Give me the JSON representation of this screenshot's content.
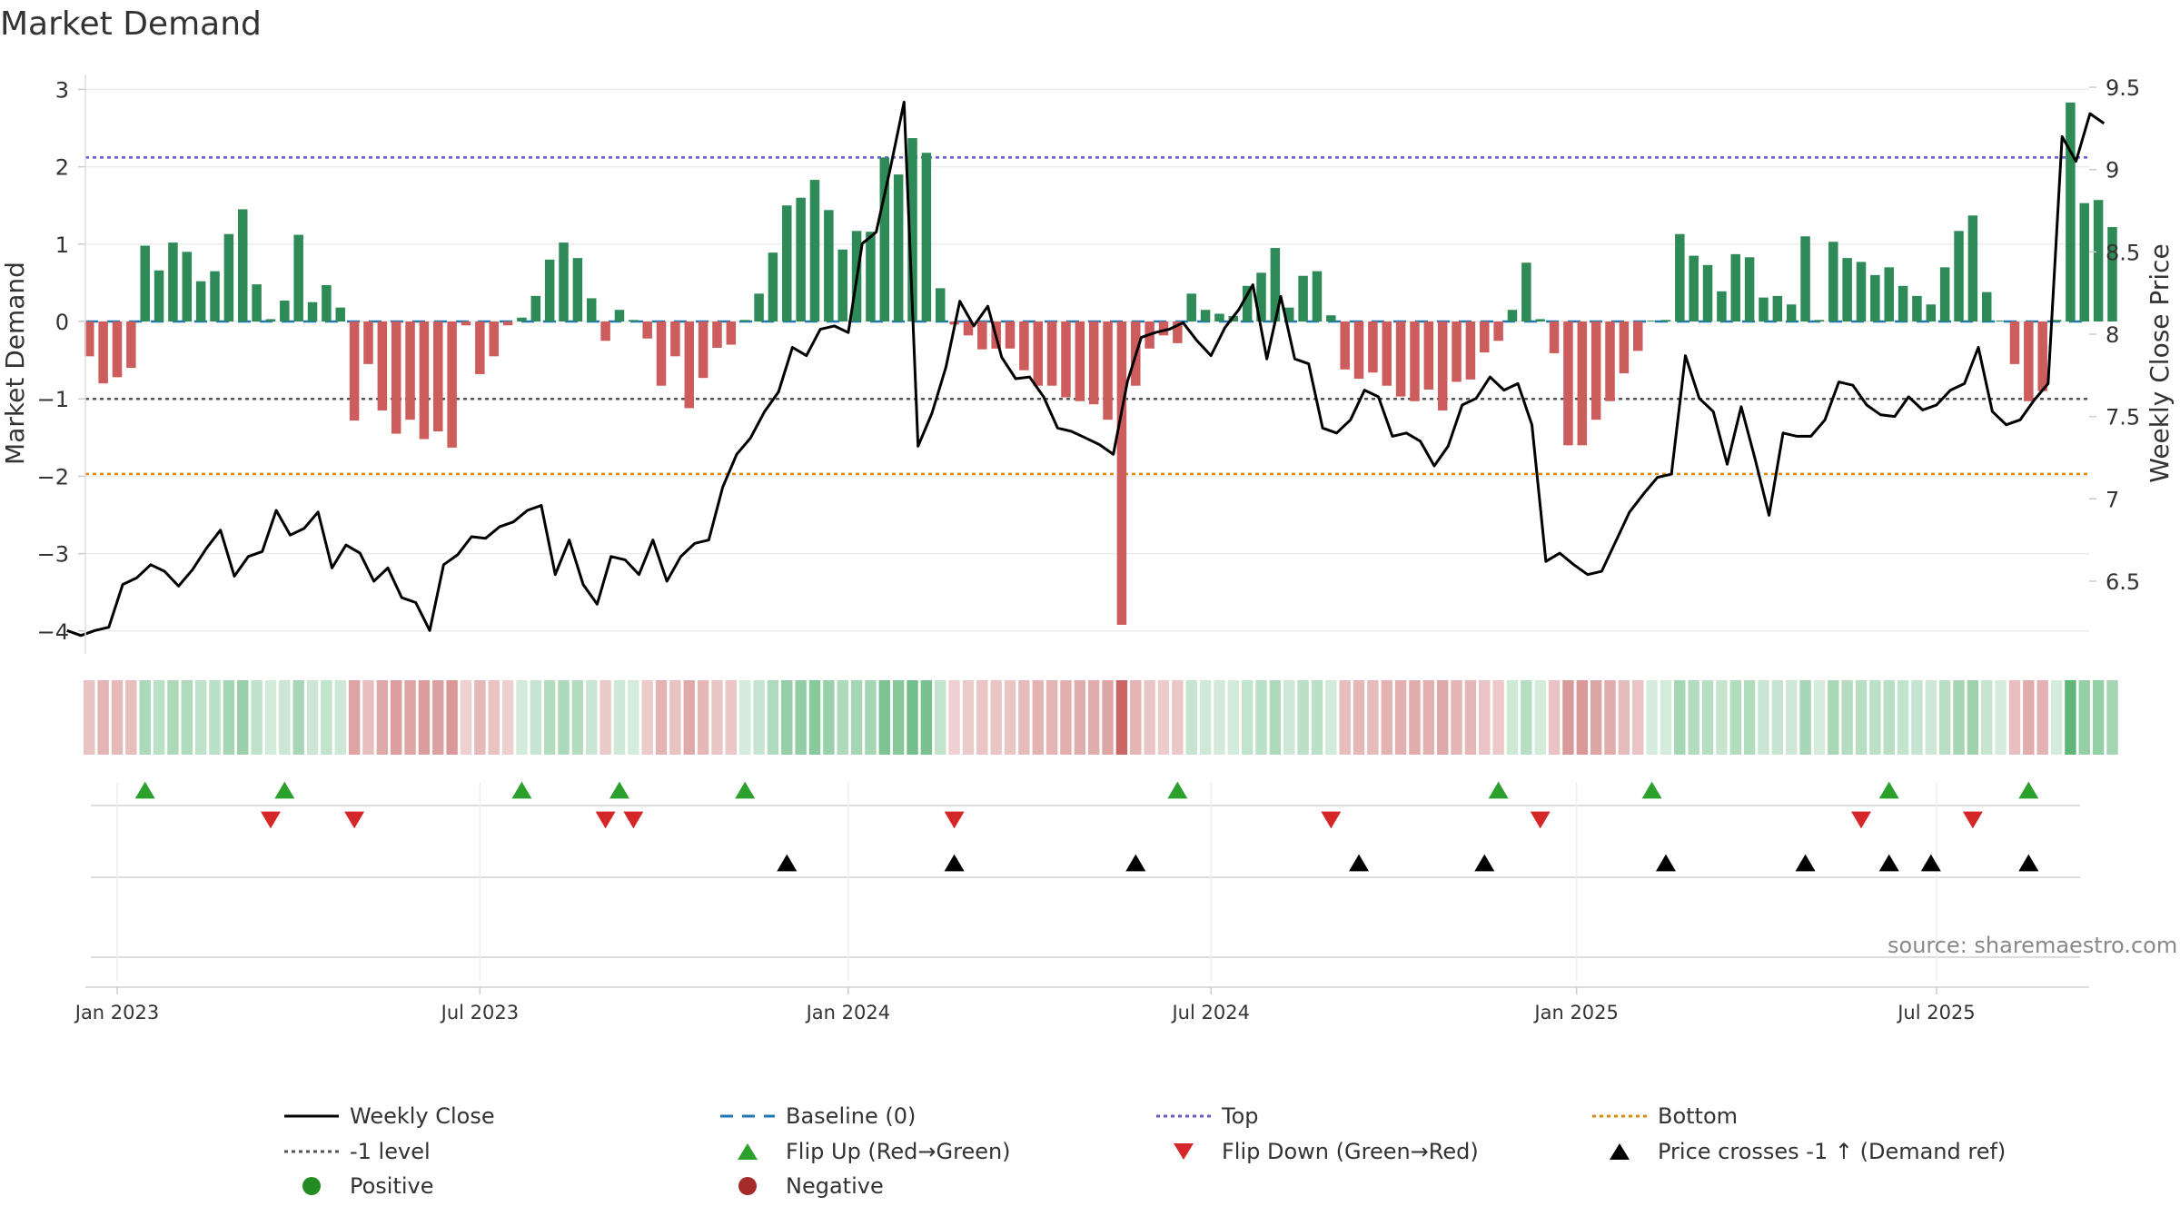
{
  "chart_data": {
    "type": "bar",
    "title": "Market Demand",
    "ylabel_left": "Market Demand",
    "ylabel_right": "Weekly Close Price",
    "source": "source: sharemaestro.com",
    "colors": {
      "positive": "#2e8b57",
      "negative": "#cd5c5c",
      "close": "#000000",
      "baseline": "#1f77b4",
      "top": "#6a5acd",
      "bottom": "#e08a0b",
      "minus1": "#555555",
      "flip_up": "#2ca02c",
      "flip_down": "#d62728",
      "price_cross": "#000000",
      "dot_positive": "#228b22",
      "dot_negative": "#a52a2a"
    },
    "ylim_left": [
      -4.3,
      3.2
    ],
    "yticks_left": [
      3,
      2,
      1,
      0,
      -1,
      -2,
      -3,
      -4
    ],
    "ytick_labels_left": [
      "3",
      "2",
      "1",
      "0",
      "−1",
      "−2",
      "−3",
      "−4"
    ],
    "ylim_right": [
      6.2,
      9.55
    ],
    "yticks_right": [
      9.5,
      9,
      8.5,
      8,
      7.5,
      7,
      6.5
    ],
    "ytick_labels_right": [
      "9.5",
      "9",
      "8.5",
      "8",
      "7.5",
      "7",
      "6.5"
    ],
    "reference_lines": {
      "top": 2.12,
      "bottom": -1.97,
      "minus1": -1.0,
      "baseline": 0
    },
    "x_start_week": -2,
    "x_end_week": 143,
    "date_ticks": [
      {
        "week": 0,
        "label": "Jan 2023"
      },
      {
        "week": 26,
        "label": "Jul 2023"
      },
      {
        "week": 52.4,
        "label": "Jan 2024"
      },
      {
        "week": 78.4,
        "label": "Jul 2024"
      },
      {
        "week": 104.6,
        "label": "Jan 2025"
      },
      {
        "week": 130.4,
        "label": "Jul 2025"
      }
    ],
    "demand": [
      -0.45,
      -0.8,
      -0.72,
      -0.6,
      0.98,
      0.66,
      1.02,
      0.9,
      0.52,
      0.65,
      1.13,
      1.45,
      0.48,
      0.03,
      0.27,
      1.12,
      0.25,
      0.47,
      0.18,
      -1.28,
      -0.55,
      -1.15,
      -1.45,
      -1.27,
      -1.52,
      -1.42,
      -1.63,
      -0.05,
      -0.68,
      -0.45,
      -0.05,
      0.05,
      0.33,
      0.8,
      1.02,
      0.82,
      0.3,
      -0.25,
      0.15,
      0.02,
      -0.22,
      -0.83,
      -0.45,
      -1.12,
      -0.73,
      -0.34,
      -0.3,
      0.02,
      0.36,
      0.89,
      1.5,
      1.6,
      1.83,
      1.44,
      0.93,
      1.17,
      1.16,
      2.12,
      1.9,
      2.37,
      2.18,
      0.43,
      -0.04,
      -0.18,
      -0.36,
      -0.35,
      -0.35,
      -0.63,
      -0.83,
      -0.83,
      -0.98,
      -1.03,
      -1.07,
      -1.27,
      -3.92,
      -0.83,
      -0.35,
      -0.18,
      -0.28,
      0.36,
      0.15,
      0.1,
      0.07,
      0.46,
      0.63,
      0.95,
      0.18,
      0.59,
      0.65,
      0.08,
      -0.62,
      -0.74,
      -0.66,
      -0.83,
      -0.97,
      -1.03,
      -0.88,
      -1.15,
      -0.78,
      -0.75,
      -0.4,
      -0.25,
      0.15,
      0.76,
      0.03,
      -0.41,
      -1.6,
      -1.6,
      -1.27,
      -1.03,
      -0.67,
      -0.38,
      0.01,
      0.02,
      1.13,
      0.85,
      0.73,
      0.39,
      0.87,
      0.83,
      0.31,
      0.33,
      0.22,
      1.1,
      0.02,
      1.03,
      0.82,
      0.77,
      0.6,
      0.7,
      0.46,
      0.33,
      0.22,
      0.7,
      1.17,
      1.37,
      0.38,
      0.01,
      -0.55,
      -1.03,
      -0.9,
      0.02,
      2.83,
      1.53,
      1.57,
      1.22
    ],
    "close_x_offset": -1.6,
    "weekly_close": [
      6.2,
      6.17,
      6.2,
      6.22,
      6.48,
      6.52,
      6.6,
      6.56,
      6.47,
      6.57,
      6.7,
      6.81,
      6.53,
      6.65,
      6.68,
      6.93,
      6.78,
      6.82,
      6.92,
      6.58,
      6.72,
      6.67,
      6.5,
      6.58,
      6.4,
      6.37,
      6.2,
      6.6,
      6.66,
      6.77,
      6.76,
      6.83,
      6.86,
      6.93,
      6.96,
      6.54,
      6.75,
      6.48,
      6.36,
      6.65,
      6.63,
      6.54,
      6.75,
      6.5,
      6.65,
      6.73,
      6.75,
      7.07,
      7.27,
      7.37,
      7.53,
      7.65,
      7.92,
      7.87,
      8.03,
      8.05,
      8.01,
      8.55,
      8.62,
      9.0,
      9.41,
      7.32,
      7.52,
      7.8,
      8.2,
      8.05,
      8.17,
      7.86,
      7.73,
      7.74,
      7.62,
      7.43,
      7.41,
      7.37,
      7.33,
      7.27,
      7.71,
      7.98,
      8.01,
      8.03,
      8.07,
      7.96,
      7.87,
      8.04,
      8.15,
      8.3,
      7.85,
      8.23,
      7.85,
      7.82,
      7.43,
      7.4,
      7.48,
      7.66,
      7.62,
      7.38,
      7.4,
      7.35,
      7.2,
      7.32,
      7.57,
      7.61,
      7.74,
      7.66,
      7.7,
      7.45,
      6.62,
      6.67,
      6.6,
      6.54,
      6.56,
      6.74,
      6.92,
      7.03,
      7.13,
      7.15,
      7.87,
      7.61,
      7.53,
      7.21,
      7.56,
      7.24,
      6.9,
      7.4,
      7.38,
      7.38,
      7.48,
      7.71,
      7.69,
      7.57,
      7.51,
      7.5,
      7.62,
      7.54,
      7.57,
      7.66,
      7.7,
      7.92,
      7.53,
      7.45,
      7.48,
      7.6,
      7.7,
      9.2,
      9.05,
      9.34,
      9.28
    ],
    "flip_up_weeks": [
      2,
      12,
      29,
      36,
      45,
      76,
      99,
      110,
      127,
      137
    ],
    "flip_down_weeks": [
      11,
      17,
      35,
      37,
      60,
      87,
      102,
      125,
      133
    ],
    "price_cross_weeks": [
      48,
      60,
      73,
      89,
      98,
      111,
      121,
      127,
      130,
      137
    ],
    "legend": [
      {
        "label": "Weekly Close",
        "symbol": "line"
      },
      {
        "label": "Baseline (0)",
        "symbol": "dash"
      },
      {
        "label": "Top",
        "symbol": "dot-line-top"
      },
      {
        "label": "Bottom",
        "symbol": "dot-line-bottom"
      },
      {
        "label": "-1 level",
        "symbol": "dot-line-minus1"
      },
      {
        "label": "Flip Up (Red→Green)",
        "symbol": "tri-up-green"
      },
      {
        "label": "Flip Down (Green→Red)",
        "symbol": "tri-down-red"
      },
      {
        "label": "Price crosses -1 ↑ (Demand ref)",
        "symbol": "tri-up-black"
      },
      {
        "label": "Positive",
        "symbol": "dot-green"
      },
      {
        "label": "Negative",
        "symbol": "dot-red"
      }
    ]
  }
}
